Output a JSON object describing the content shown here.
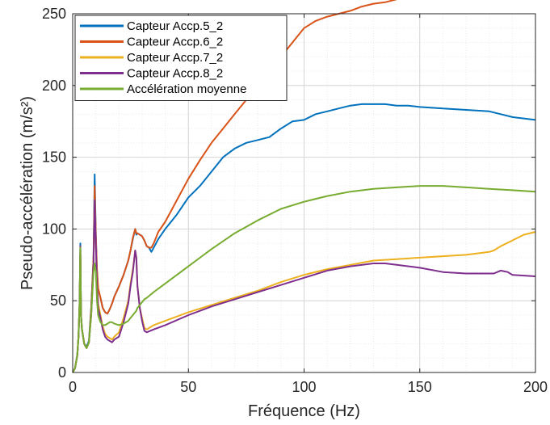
{
  "chart_data": {
    "type": "line",
    "title": "",
    "xlabel": "Fréquence (Hz)",
    "ylabel": "Pseudo-accélération (m/s²)",
    "xlim": [
      0,
      200
    ],
    "ylim": [
      0,
      250
    ],
    "xticks": [
      0,
      50,
      100,
      150,
      200
    ],
    "yticks": [
      0,
      50,
      100,
      150,
      200,
      250
    ],
    "grid": "major and minor",
    "legend_position": "top-left",
    "series": [
      {
        "name": "Capteur Accp.5_2",
        "color": "#0072BD",
        "x": [
          0,
          1,
          2,
          2.5,
          3,
          3.3,
          3.6,
          4,
          5,
          6,
          7,
          8,
          9,
          9.5,
          10,
          10.5,
          11,
          12,
          13,
          14,
          15,
          16,
          17,
          18,
          20,
          22,
          24,
          25,
          26,
          27,
          27.5,
          28,
          29,
          30,
          31,
          32,
          33,
          34,
          35,
          37,
          40,
          45,
          50,
          55,
          60,
          65,
          70,
          75,
          80,
          85,
          90,
          95,
          100,
          105,
          110,
          115,
          120,
          125,
          130,
          135,
          140,
          145,
          150,
          160,
          170,
          180,
          185,
          190,
          200
        ],
        "y": [
          0,
          3,
          12,
          25,
          50,
          90,
          40,
          30,
          20,
          18,
          22,
          45,
          80,
          138,
          95,
          70,
          58,
          52,
          45,
          42,
          41,
          44,
          48,
          53,
          60,
          68,
          78,
          85,
          93,
          100,
          96,
          97,
          96,
          95,
          92,
          88,
          87,
          84,
          87,
          93,
          100,
          110,
          122,
          130,
          140,
          150,
          156,
          160,
          162,
          164,
          170,
          175,
          176,
          180,
          182,
          184,
          186,
          187,
          187,
          187,
          186,
          186,
          185,
          184,
          183,
          182,
          180,
          178,
          176
        ]
      },
      {
        "name": "Capteur Accp.6_2",
        "color": "#D95319",
        "x": [
          0,
          1,
          2,
          2.5,
          3,
          3.3,
          3.6,
          4,
          5,
          6,
          7,
          8,
          9,
          9.5,
          10,
          10.5,
          11,
          12,
          13,
          14,
          15,
          16,
          17,
          18,
          20,
          22,
          24,
          25,
          26,
          27,
          27.5,
          28,
          29,
          30,
          31,
          32,
          33,
          34,
          35,
          37,
          40,
          45,
          50,
          55,
          60,
          65,
          70,
          75,
          80,
          85,
          90,
          95,
          100,
          105,
          110,
          115,
          120,
          125,
          130,
          135,
          140,
          145,
          150,
          155,
          160,
          170,
          180,
          185,
          190,
          200
        ],
        "y": [
          0,
          3,
          12,
          25,
          50,
          88,
          40,
          30,
          20,
          17,
          21,
          44,
          80,
          130,
          95,
          72,
          59,
          52,
          45,
          42,
          41,
          44,
          48,
          53,
          60,
          68,
          78,
          85,
          94,
          100,
          97,
          97,
          96,
          95,
          92,
          88,
          87,
          87,
          90,
          98,
          105,
          120,
          135,
          148,
          160,
          170,
          180,
          190,
          200,
          210,
          220,
          230,
          240,
          245,
          248,
          250,
          252,
          255,
          257,
          258,
          260,
          262,
          265,
          268,
          269,
          270,
          270,
          270,
          269,
          267
        ]
      },
      {
        "name": "Capteur Accp.7_2",
        "color": "#EDB120",
        "x": [
          0,
          1,
          2,
          2.5,
          3,
          3.3,
          3.6,
          4,
          5,
          6,
          7,
          8,
          9,
          9.5,
          10,
          10.5,
          11,
          12,
          13,
          14,
          15,
          16,
          17,
          18,
          20,
          22,
          24,
          25,
          26,
          27,
          27.5,
          28,
          29,
          30,
          31,
          32,
          35,
          40,
          50,
          60,
          70,
          80,
          90,
          100,
          110,
          120,
          130,
          140,
          150,
          160,
          170,
          180,
          182,
          185,
          190,
          195,
          200
        ],
        "y": [
          0,
          3,
          12,
          25,
          48,
          85,
          40,
          30,
          20,
          17,
          21,
          40,
          75,
          120,
          90,
          62,
          48,
          40,
          32,
          27,
          25,
          24,
          23,
          25,
          28,
          38,
          50,
          62,
          72,
          85,
          80,
          60,
          45,
          38,
          31,
          30,
          33,
          36,
          42,
          47,
          52,
          57,
          63,
          68,
          72,
          75,
          78,
          79,
          80,
          81,
          82,
          84,
          85,
          88,
          92,
          96,
          98
        ]
      },
      {
        "name": "Capteur Accp.8_2",
        "color": "#7E2F8E",
        "x": [
          0,
          1,
          2,
          2.5,
          3,
          3.3,
          3.6,
          4,
          5,
          6,
          7,
          8,
          9,
          9.5,
          10,
          10.5,
          11,
          12,
          13,
          14,
          15,
          16,
          17,
          18,
          20,
          22,
          24,
          25,
          26,
          27,
          27.5,
          28,
          29,
          30,
          31,
          32,
          35,
          40,
          50,
          60,
          70,
          80,
          90,
          100,
          110,
          120,
          130,
          135,
          140,
          150,
          160,
          170,
          180,
          182,
          185,
          188,
          190,
          200
        ],
        "y": [
          0,
          3,
          12,
          25,
          48,
          88,
          40,
          30,
          20,
          17,
          21,
          40,
          75,
          120,
          90,
          60,
          45,
          38,
          30,
          25,
          23,
          22,
          21,
          23,
          25,
          35,
          48,
          60,
          70,
          85,
          80,
          60,
          45,
          36,
          29,
          28,
          30,
          33,
          40,
          46,
          51,
          56,
          61,
          66,
          71,
          74,
          76,
          76,
          75,
          73,
          70,
          69,
          69,
          69,
          71,
          70,
          68,
          67
        ]
      },
      {
        "name": "Accélération moyenne",
        "color": "#77AC30",
        "x": [
          0,
          1,
          2,
          2.5,
          3,
          3.3,
          3.6,
          4,
          5,
          6,
          7,
          8,
          9,
          9.5,
          10,
          10.5,
          11,
          12,
          13,
          14,
          15,
          16,
          17,
          18,
          20,
          22,
          24,
          25,
          26,
          27,
          27.5,
          28,
          29,
          30,
          31,
          32,
          35,
          40,
          50,
          60,
          70,
          80,
          90,
          100,
          110,
          120,
          130,
          140,
          150,
          155,
          160,
          170,
          180,
          190,
          200
        ],
        "y": [
          0,
          3,
          12,
          25,
          48,
          87,
          40,
          30,
          20,
          17,
          21,
          40,
          70,
          76,
          70,
          50,
          40,
          35,
          33,
          33,
          34,
          35,
          35,
          34,
          33,
          34,
          36,
          38,
          40,
          42,
          43,
          45,
          47,
          49,
          51,
          52,
          56,
          62,
          74,
          86,
          97,
          106,
          114,
          119,
          123,
          126,
          128,
          129,
          130,
          130,
          130,
          129,
          128,
          127,
          126
        ]
      }
    ]
  }
}
